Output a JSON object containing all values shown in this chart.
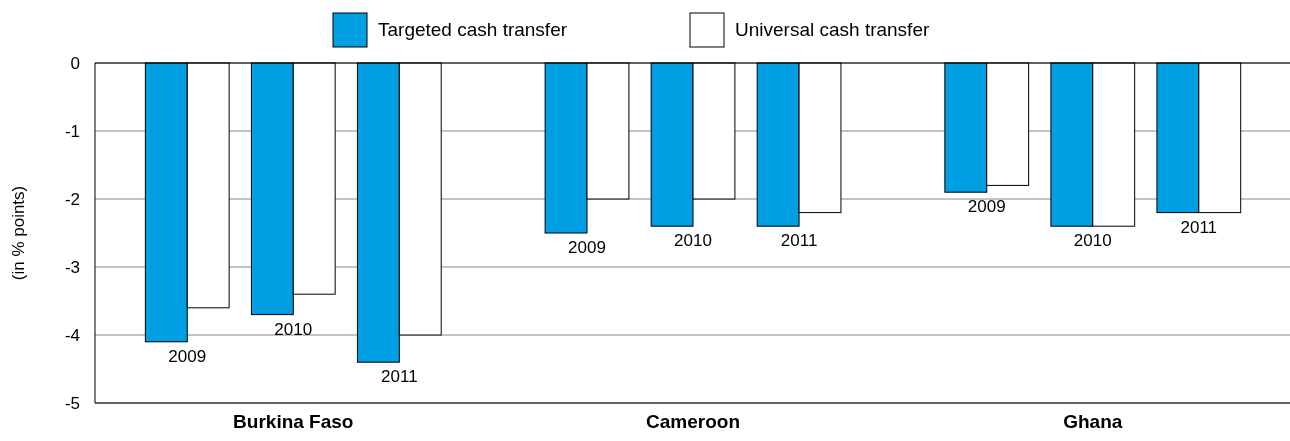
{
  "chart_data": {
    "type": "bar",
    "ylabel": "(in % points)",
    "categories": [
      "2009",
      "2010",
      "2011",
      "2009",
      "2010",
      "2011",
      "2009",
      "2010",
      "2011"
    ],
    "series": [
      {
        "name": "Targeted cash transfer",
        "color": "#009fe3",
        "values": [
          -4.1,
          -3.7,
          -4.4,
          -2.5,
          -2.4,
          -2.4,
          -1.9,
          -2.4,
          -2.2
        ]
      },
      {
        "name": "Universal cash transfer",
        "color": "#ffffff",
        "values": [
          -3.6,
          -3.4,
          -4.0,
          -2.0,
          -2.0,
          -2.2,
          -1.8,
          -2.4,
          -2.2
        ]
      }
    ],
    "ylim": [
      -5,
      0
    ],
    "yticks": [
      0,
      -1,
      -2,
      -3,
      -4,
      -5
    ],
    "grid": "y",
    "legend": "top",
    "annotations": [
      "Burkina Faso",
      "Cameroon",
      "Ghana"
    ]
  }
}
